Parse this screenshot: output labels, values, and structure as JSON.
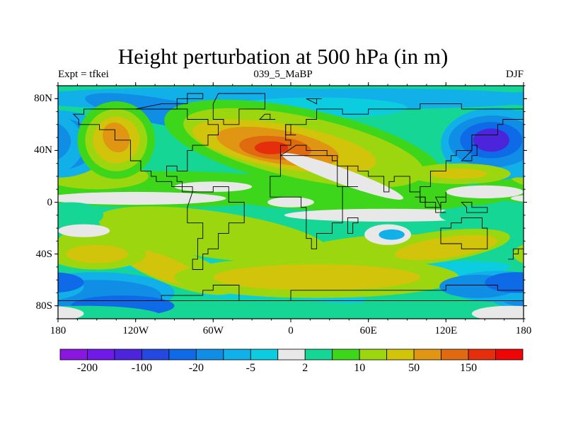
{
  "title": "Height perturbation at 500 hPa (in m)",
  "subtitle_left": "Expt = tfkei",
  "subtitle_center": "039_5_MaBP",
  "subtitle_right": "DJF",
  "chart_data": {
    "type": "heatmap",
    "projection": "cylindrical-equidistant",
    "variable": "500 hPa height perturbation",
    "units": "m",
    "season": "DJF",
    "xlim": [
      -180,
      180
    ],
    "ylim": [
      -90,
      90
    ],
    "x_ticks": [
      {
        "value": -180,
        "label": "180"
      },
      {
        "value": -120,
        "label": "120W"
      },
      {
        "value": -60,
        "label": "60W"
      },
      {
        "value": 0,
        "label": "0"
      },
      {
        "value": 60,
        "label": "60E"
      },
      {
        "value": 120,
        "label": "120E"
      },
      {
        "value": 180,
        "label": "180"
      }
    ],
    "y_ticks": [
      {
        "value": 80,
        "label": "80N"
      },
      {
        "value": 40,
        "label": "40N"
      },
      {
        "value": 0,
        "label": "0"
      },
      {
        "value": -40,
        "label": "40S"
      },
      {
        "value": -80,
        "label": "80S"
      }
    ],
    "colorbar": {
      "levels": [
        -200,
        -150,
        -100,
        -50,
        -20,
        -10,
        -5,
        -2,
        2,
        5,
        10,
        20,
        50,
        100,
        150,
        200
      ],
      "tick_values": [
        -200,
        -100,
        -20,
        -5,
        2,
        10,
        50,
        150
      ],
      "tick_labels": [
        "-200",
        "-100",
        "-20",
        "-5",
        "2",
        "10",
        "50",
        "150"
      ],
      "colors": [
        "#8a17e0",
        "#6f1ae6",
        "#4b24dc",
        "#2448e0",
        "#0e6ae6",
        "#108ee6",
        "#12b0e8",
        "#0ccce0",
        "#e8e8e8",
        "#16d696",
        "#3ed61a",
        "#9cd60e",
        "#d2c40a",
        "#e09612",
        "#e06a10",
        "#e42e0c",
        "#ee0606"
      ]
    },
    "features": [
      {
        "type": "high",
        "lon": -12,
        "lat": 42,
        "value": 150
      },
      {
        "type": "high",
        "lon": -135,
        "lat": 48,
        "value": 50
      },
      {
        "type": "high",
        "lon": 30,
        "lat": -55,
        "value": 20
      },
      {
        "type": "low",
        "lon": 155,
        "lat": 48,
        "value": -150
      },
      {
        "type": "low",
        "lon": -178,
        "lat": 45,
        "value": -100
      },
      {
        "type": "low",
        "lon": 145,
        "lat": -65,
        "value": -20
      },
      {
        "type": "low",
        "lon": -150,
        "lat": -72,
        "value": -50
      }
    ]
  }
}
